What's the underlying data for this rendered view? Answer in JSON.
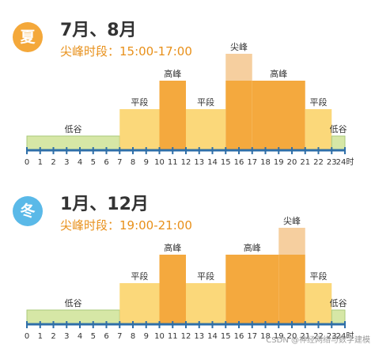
{
  "colors": {
    "summer_badge": "#f4a83a",
    "winter_badge": "#5ab9e8",
    "peak_label_summer": "#e8901a",
    "peak_label_winter": "#e8901a",
    "low": "#d6e7a6",
    "low_edge": "#a9c97a",
    "flat": "#fbd87a",
    "high": "#f4a93e",
    "peak": "#f6cf9f",
    "axis": "#2f6fa8",
    "bar_text": "#333333"
  },
  "watermark": "CSDN @神经网络与数学建模",
  "chart_data": [
    {
      "type": "bar",
      "badge": "夏",
      "title": "7月、8月",
      "subtitle": "尖峰时段：15:00-17:00",
      "x_ticks": [
        "0",
        "1",
        "2",
        "3",
        "4",
        "5",
        "6",
        "7",
        "8",
        "9",
        "10",
        "11",
        "12",
        "13",
        "14",
        "15",
        "16",
        "17",
        "18",
        "19",
        "20",
        "21",
        "22",
        "23",
        "24时"
      ],
      "xlim": [
        0,
        24
      ],
      "ylim": [
        0,
        4
      ],
      "segments": [
        {
          "start": 0,
          "end": 7,
          "label": "低谷",
          "level": 1,
          "kind": "low"
        },
        {
          "start": 7,
          "end": 10,
          "label": "平段",
          "level": 2,
          "kind": "flat"
        },
        {
          "start": 10,
          "end": 12,
          "label": "高峰",
          "level": 3,
          "kind": "high"
        },
        {
          "start": 12,
          "end": 15,
          "label": "平段",
          "level": 2,
          "kind": "flat"
        },
        {
          "start": 15,
          "end": 17,
          "label": "尖峰",
          "level": 4,
          "kind": "peak"
        },
        {
          "start": 17,
          "end": 21,
          "label": "高峰",
          "level": 3,
          "kind": "high"
        },
        {
          "start": 21,
          "end": 23,
          "label": "平段",
          "level": 2,
          "kind": "flat"
        },
        {
          "start": 23,
          "end": 24,
          "label": "低谷",
          "level": 1,
          "kind": "low"
        }
      ]
    },
    {
      "type": "bar",
      "badge": "冬",
      "title": "1月、12月",
      "subtitle": "尖峰时段：19:00-21:00",
      "x_ticks": [
        "0",
        "1",
        "2",
        "3",
        "4",
        "5",
        "6",
        "7",
        "8",
        "9",
        "10",
        "11",
        "12",
        "13",
        "14",
        "15",
        "16",
        "17",
        "18",
        "19",
        "20",
        "21",
        "22",
        "23",
        "24时"
      ],
      "xlim": [
        0,
        24
      ],
      "ylim": [
        0,
        4
      ],
      "segments": [
        {
          "start": 0,
          "end": 7,
          "label": "低谷",
          "level": 1,
          "kind": "low"
        },
        {
          "start": 7,
          "end": 10,
          "label": "平段",
          "level": 2,
          "kind": "flat"
        },
        {
          "start": 10,
          "end": 12,
          "label": "高峰",
          "level": 3,
          "kind": "high"
        },
        {
          "start": 12,
          "end": 15,
          "label": "平段",
          "level": 2,
          "kind": "flat"
        },
        {
          "start": 15,
          "end": 19,
          "label": "高峰",
          "level": 3,
          "kind": "high"
        },
        {
          "start": 19,
          "end": 21,
          "label": "尖峰",
          "level": 4,
          "kind": "peak"
        },
        {
          "start": 21,
          "end": 23,
          "label": "平段",
          "level": 2,
          "kind": "flat"
        },
        {
          "start": 23,
          "end": 24,
          "label": "低谷",
          "level": 1,
          "kind": "low"
        }
      ]
    }
  ]
}
